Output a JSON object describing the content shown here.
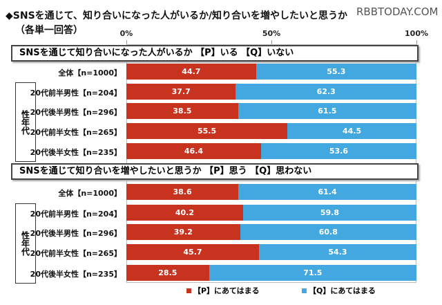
{
  "header": {
    "title": "◆SNSを通じて、知り合いになった人がいるか/知り合いを増やしたいと思うか",
    "subtitle": "（各単一回答）",
    "watermark": "RBBTODAY.COM"
  },
  "chart_data": {
    "type": "bar",
    "stacked": true,
    "orientation": "horizontal",
    "xlim": [
      0,
      100
    ],
    "tick_labels": [
      "0%",
      "50%",
      "100%"
    ],
    "colors": {
      "P": "#c8331f",
      "Q": "#43a8df"
    },
    "legend": [
      "【P】にあてはまる",
      "【Q】にあてはまる"
    ],
    "legend_position": "bottom",
    "group_label": "性年代",
    "panels": [
      {
        "title": "SNSを通じて知り合いになった人がいるか 【P】いる 【Q】いない",
        "categories": [
          "全体【n=1000】",
          "20代前半男性【n=204】",
          "20代後半男性【n=296】",
          "20代前半女性【n=265】",
          "20代後半女性【n=235】"
        ],
        "series": [
          {
            "name": "【P】にあてはまる",
            "values": [
              44.7,
              37.7,
              38.5,
              55.5,
              46.4
            ]
          },
          {
            "name": "【Q】にあてはまる",
            "values": [
              55.3,
              62.3,
              61.5,
              44.5,
              53.6
            ]
          }
        ]
      },
      {
        "title": "SNSを通じて知り合いを増やしたいと思うか 【P】思う 【Q】思わない",
        "categories": [
          "全体【n=1000】",
          "20代前半男性【n=204】",
          "20代後半男性【n=296】",
          "20代前半女性【n=265】",
          "20代後半女性【n=235】"
        ],
        "series": [
          {
            "name": "【P】にあてはまる",
            "values": [
              38.6,
              40.2,
              39.2,
              45.7,
              28.5
            ]
          },
          {
            "name": "【Q】にあてはまる",
            "values": [
              61.4,
              59.8,
              60.8,
              54.3,
              71.5
            ]
          }
        ]
      }
    ]
  }
}
